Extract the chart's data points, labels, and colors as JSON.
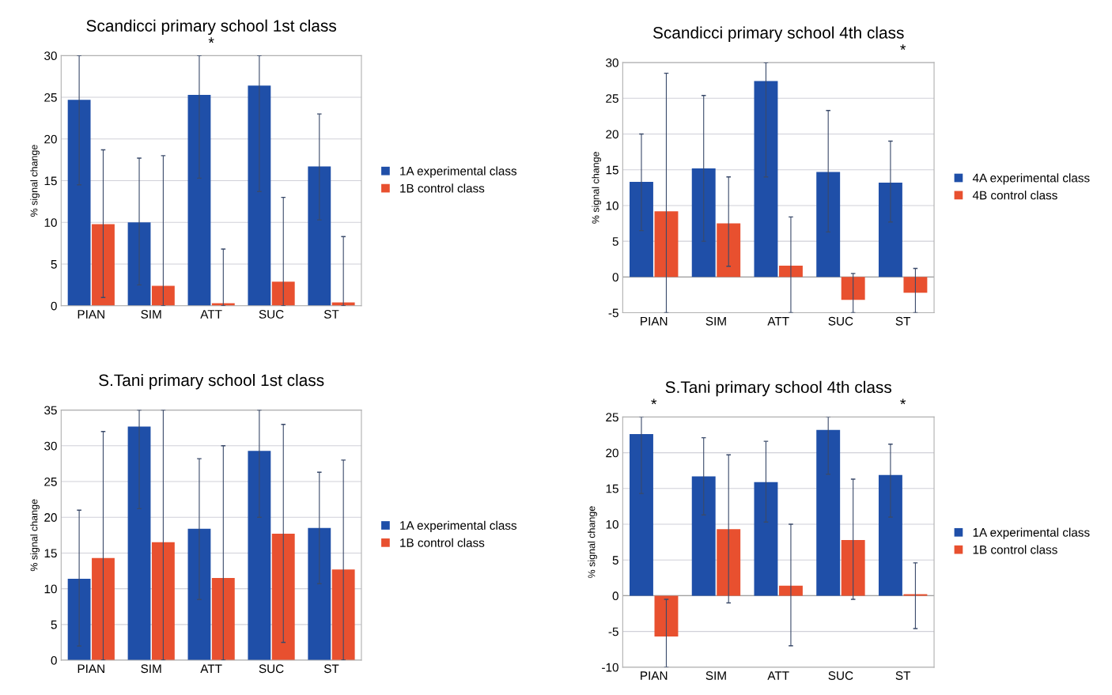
{
  "chart_data": [
    {
      "type": "bar",
      "title": "Scandicci primary school 1st class",
      "ylabel": "% signal change",
      "categories": [
        "PIAN",
        "SIM",
        "ATT",
        "SUC",
        "ST"
      ],
      "ylim": [
        0,
        30
      ],
      "yticks": [
        0,
        5,
        10,
        15,
        20,
        25,
        30
      ],
      "grid": "y",
      "legend": "right",
      "annotations": [
        "*"
      ],
      "series": [
        {
          "name": "1A experimental class",
          "color": "#1f4fa8",
          "values": [
            24.7,
            10,
            25.3,
            26.4,
            16.7
          ],
          "errors": [
            [
              14.5,
              30
            ],
            [
              2.5,
              17.7
            ],
            [
              15.3,
              30
            ],
            [
              13.7,
              30
            ],
            [
              10.3,
              23
            ]
          ]
        },
        {
          "name": "1B control class",
          "color": "#e8502f",
          "values": [
            9.8,
            2.4,
            0.3,
            2.9,
            0.4
          ],
          "errors": [
            [
              1,
              18.7
            ],
            [
              0,
              18
            ],
            [
              0,
              6.8
            ],
            [
              0,
              13
            ],
            [
              0,
              8.3
            ]
          ]
        }
      ]
    },
    {
      "type": "bar",
      "title": "Scandicci primary school 4th class",
      "ylabel": "% signal change",
      "categories": [
        "PIAN",
        "SIM",
        "ATT",
        "SUC",
        "ST"
      ],
      "ylim": [
        -5,
        30
      ],
      "yticks": [
        -5,
        0,
        5,
        10,
        15,
        20,
        25,
        30
      ],
      "grid": "y",
      "legend": "right",
      "annotations": [
        "*"
      ],
      "series": [
        {
          "name": "4A experimental class",
          "color": "#1f4fa8",
          "values": [
            13.3,
            15.2,
            27.4,
            14.7,
            13.2
          ],
          "errors": [
            [
              6.5,
              20
            ],
            [
              5,
              25.4
            ],
            [
              14,
              30
            ],
            [
              6.3,
              23.3
            ],
            [
              7.7,
              19
            ]
          ]
        },
        {
          "name": "4B control class",
          "color": "#e8502f",
          "values": [
            9.2,
            7.5,
            1.6,
            -3.2,
            -2.2
          ],
          "errors": [
            [
              -5,
              28.5
            ],
            [
              1.5,
              14
            ],
            [
              -5,
              8.4
            ],
            [
              -5,
              0.5
            ],
            [
              -5,
              1.2
            ]
          ]
        }
      ]
    },
    {
      "type": "bar",
      "title": "S.Tani primary school 1st class",
      "ylabel": "% signal change",
      "categories": [
        "PIAN",
        "SIM",
        "ATT",
        "SUC",
        "ST"
      ],
      "ylim": [
        0,
        35
      ],
      "yticks": [
        0,
        5,
        10,
        15,
        20,
        25,
        30,
        35
      ],
      "grid": "y",
      "legend": "right",
      "series": [
        {
          "name": "1A experimental class",
          "color": "#1f4fa8",
          "values": [
            11.4,
            32.7,
            18.4,
            29.3,
            18.5
          ],
          "errors": [
            [
              2,
              21
            ],
            [
              21.2,
              35
            ],
            [
              8.5,
              28.2
            ],
            [
              20,
              35
            ],
            [
              10.7,
              26.3
            ]
          ]
        },
        {
          "name": "1B control class",
          "color": "#e8502f",
          "values": [
            14.3,
            16.5,
            11.5,
            17.7,
            12.7
          ],
          "errors": [
            [
              0,
              32
            ],
            [
              0,
              35
            ],
            [
              0,
              30
            ],
            [
              2.5,
              33
            ],
            [
              0,
              28
            ]
          ]
        }
      ]
    },
    {
      "type": "bar",
      "title": "S.Tani primary school 4th class",
      "ylabel": "% signal change",
      "categories": [
        "PIAN",
        "SIM",
        "ATT",
        "SUC",
        "ST"
      ],
      "ylim": [
        -10,
        25
      ],
      "yticks": [
        -10,
        -5,
        0,
        5,
        10,
        15,
        20,
        25
      ],
      "grid": "y",
      "legend": "right",
      "annotations": [
        "*",
        "*"
      ],
      "series": [
        {
          "name": "1A experimental class",
          "color": "#1f4fa8",
          "values": [
            22.6,
            16.7,
            15.9,
            23.2,
            16.9
          ],
          "errors": [
            [
              14.3,
              25
            ],
            [
              11.3,
              22.1
            ],
            [
              10.3,
              21.6
            ],
            [
              17,
              25
            ],
            [
              11,
              21.2
            ]
          ]
        },
        {
          "name": "1B control class",
          "color": "#e8502f",
          "values": [
            -5.7,
            9.3,
            1.4,
            7.8,
            0.2
          ],
          "errors": [
            [
              -10,
              -0.5
            ],
            [
              -1,
              19.7
            ],
            [
              -7,
              10
            ],
            [
              -0.5,
              16.3
            ],
            [
              -4.6,
              4.6
            ]
          ]
        }
      ]
    }
  ]
}
